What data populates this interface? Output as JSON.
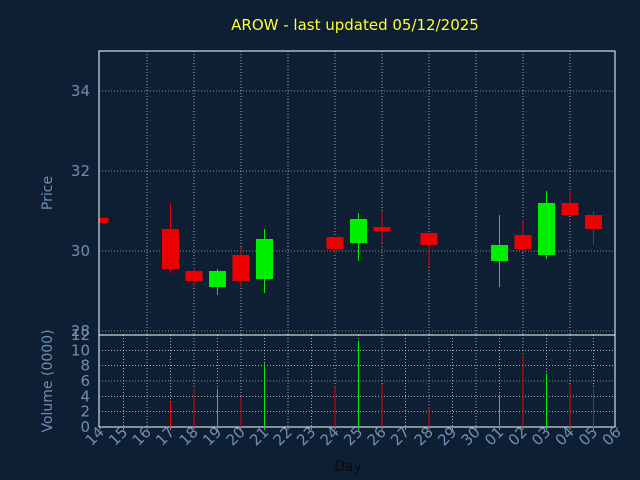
{
  "chart_data": {
    "type": "candlestick",
    "title": "AROW - last updated 05/12/2025",
    "colors": {
      "background": "#0f1f33",
      "up": "#00ee00",
      "down": "#ee0000",
      "title": "#ffff33",
      "axis_text": "#6f8fb2",
      "grid": "#ffffff"
    },
    "x_axis": {
      "label": "Day",
      "ticks": [
        "14",
        "15",
        "16",
        "17",
        "18",
        "19",
        "20",
        "21",
        "22",
        "23",
        "24",
        "25",
        "26",
        "27",
        "28",
        "29",
        "30",
        "01",
        "02",
        "03",
        "04",
        "05",
        "06"
      ]
    },
    "price_panel": {
      "ylabel": "Price",
      "ylim": [
        27.9,
        35.0
      ],
      "yticks": [
        28,
        30,
        32,
        34
      ],
      "grid": true
    },
    "volume_panel": {
      "ylabel": "Volume (0000)",
      "ylim": [
        0,
        12
      ],
      "yticks": [
        0,
        2,
        4,
        6,
        8,
        10,
        12
      ],
      "grid": true
    },
    "candles": [
      {
        "day": "14",
        "open": 30.83,
        "high": 30.83,
        "low": 30.7,
        "close": 30.7,
        "volume": 0
      },
      {
        "day": "17",
        "open": 30.55,
        "high": 31.2,
        "low": 29.45,
        "close": 29.55,
        "volume": 3.3
      },
      {
        "day": "18",
        "open": 29.5,
        "high": 29.6,
        "low": 29.1,
        "close": 29.25,
        "volume": 5.0
      },
      {
        "day": "19",
        "open": 29.1,
        "high": 29.55,
        "low": 28.9,
        "close": 29.5,
        "volume": 5.0
      },
      {
        "day": "20",
        "open": 29.9,
        "high": 30.1,
        "low": 29.1,
        "close": 29.25,
        "volume": 4.0
      },
      {
        "day": "21",
        "open": 29.3,
        "high": 30.55,
        "low": 28.95,
        "close": 30.3,
        "volume": 8.3
      },
      {
        "day": "24",
        "open": 30.35,
        "high": 30.35,
        "low": 29.95,
        "close": 30.05,
        "volume": 5.3
      },
      {
        "day": "25",
        "open": 30.2,
        "high": 30.95,
        "low": 29.75,
        "close": 30.8,
        "volume": 11.2
      },
      {
        "day": "26",
        "open": 30.6,
        "high": 31.0,
        "low": 30.2,
        "close": 30.5,
        "volume": 5.6
      },
      {
        "day": "28",
        "open": 30.45,
        "high": 30.45,
        "low": 29.6,
        "close": 30.15,
        "volume": 2.6
      },
      {
        "day": "01",
        "open": 29.75,
        "high": 30.9,
        "low": 29.1,
        "close": 30.15,
        "volume": 4.0
      },
      {
        "day": "02",
        "open": 30.4,
        "high": 30.8,
        "low": 30.0,
        "close": 30.05,
        "volume": 9.3
      },
      {
        "day": "03",
        "open": 29.9,
        "high": 31.5,
        "low": 29.8,
        "close": 31.2,
        "volume": 7.0
      },
      {
        "day": "04",
        "open": 31.2,
        "high": 31.5,
        "low": 30.9,
        "close": 30.9,
        "volume": 5.6
      },
      {
        "day": "05",
        "open": 30.9,
        "high": 31.0,
        "low": 30.15,
        "close": 30.55,
        "volume": 5.0
      }
    ]
  }
}
